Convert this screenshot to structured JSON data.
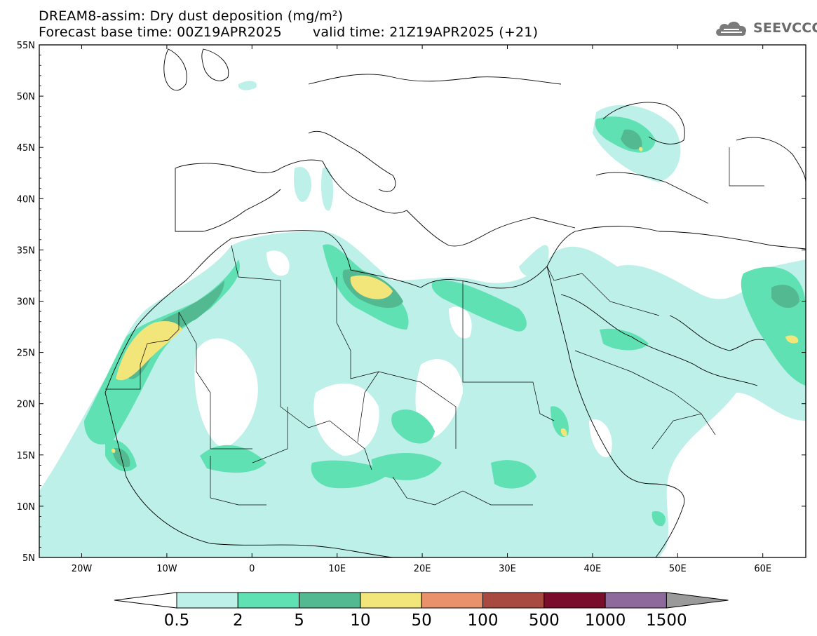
{
  "header": {
    "title_line1": "DREAM8-assim: Dry dust deposition (mg/m²)",
    "base_time": "Forecast base time: 00Z19APR2025",
    "valid_time": "valid time: 21Z19APR2025 (+21)",
    "logo_text": "SEEVCCC",
    "logo_icon": "cloud-icon"
  },
  "map": {
    "lat_labels": [
      "55N",
      "50N",
      "45N",
      "40N",
      "35N",
      "30N",
      "25N",
      "20N",
      "15N",
      "10N",
      "5N"
    ],
    "lon_labels": [
      "20W",
      "10W",
      "0",
      "10E",
      "20E",
      "30E",
      "40E",
      "50E",
      "60E"
    ]
  },
  "colorbar": {
    "labels": [
      "0.5",
      "2",
      "5",
      "10",
      "50",
      "100",
      "500",
      "1000",
      "1500"
    ],
    "colors": [
      "#bdf0e8",
      "#5fe1b3",
      "#52b991",
      "#f2e579",
      "#e8916b",
      "#a84a3f",
      "#7b0d2c",
      "#8e6a9c",
      "#9a9a9a"
    ]
  }
}
